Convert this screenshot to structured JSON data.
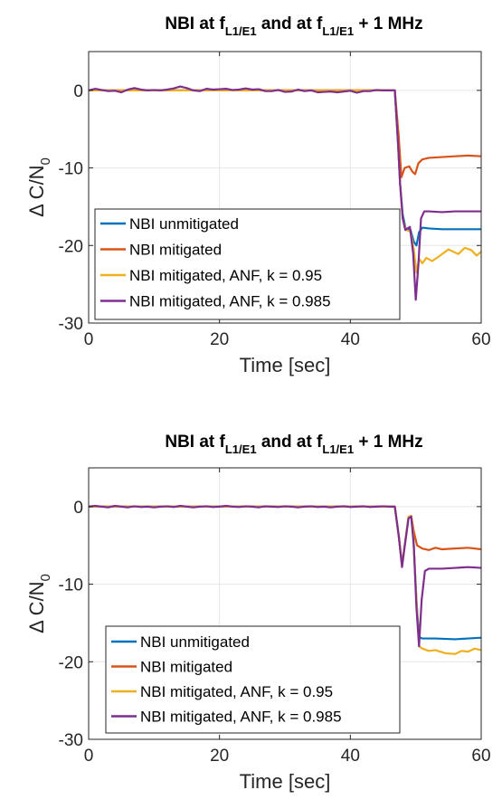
{
  "chart_data": [
    {
      "type": "line",
      "title": {
        "pre": "NBI at f",
        "sub1": "L1/E1",
        "mid": " and at f",
        "sub2": "L1/E1",
        "post": " + 1 MHz"
      },
      "xlabel": "Time [sec]",
      "ylabel": {
        "main": "Δ C/N",
        "sub": "0"
      },
      "xlim": [
        0,
        60
      ],
      "ylim": [
        -30,
        5
      ],
      "xticks": [
        0,
        20,
        40,
        60
      ],
      "yticks": [
        0,
        -10,
        -20,
        -30
      ],
      "grid": true,
      "legend_position": "bottom-left",
      "series": [
        {
          "name": "NBI unmitigated",
          "color": "#0072BD",
          "points": [
            [
              0,
              0
            ],
            [
              46.8,
              0
            ],
            [
              47.3,
              -7
            ],
            [
              47.6,
              -12
            ],
            [
              48,
              -16
            ],
            [
              48.5,
              -18
            ],
            [
              49.2,
              -18
            ],
            [
              49.7,
              -19.5
            ],
            [
              50.1,
              -20
            ],
            [
              50.5,
              -18.3
            ],
            [
              51,
              -17.7
            ],
            [
              52,
              -17.8
            ],
            [
              54,
              -17.9
            ],
            [
              56,
              -17.9
            ],
            [
              58,
              -17.9
            ],
            [
              60,
              -17.9
            ]
          ]
        },
        {
          "name": "NBI mitigated",
          "color": "#D95319",
          "points": [
            [
              0,
              0
            ],
            [
              46.8,
              0
            ],
            [
              47.4,
              -6
            ],
            [
              47.8,
              -11.2
            ],
            [
              48.3,
              -10
            ],
            [
              49,
              -9.8
            ],
            [
              49.5,
              -10.5
            ],
            [
              49.9,
              -10.8
            ],
            [
              50.4,
              -9.4
            ],
            [
              51,
              -8.9
            ],
            [
              52,
              -8.7
            ],
            [
              54,
              -8.6
            ],
            [
              56,
              -8.5
            ],
            [
              58,
              -8.4
            ],
            [
              60,
              -8.5
            ]
          ]
        },
        {
          "name": "NBI mitigated, ANF, k = 0.95",
          "color": "#EDB120",
          "points": [
            [
              0,
              0
            ],
            [
              46.8,
              0
            ],
            [
              47.3,
              -7
            ],
            [
              47.6,
              -12
            ],
            [
              48,
              -16.5
            ],
            [
              48.5,
              -18
            ],
            [
              49.2,
              -18.2
            ],
            [
              49.7,
              -20.5
            ],
            [
              50.1,
              -23.5
            ],
            [
              50.5,
              -21.7
            ],
            [
              51,
              -22.3
            ],
            [
              51.6,
              -21.6
            ],
            [
              52.5,
              -22
            ],
            [
              53.4,
              -21.5
            ],
            [
              55,
              -20.5
            ],
            [
              56.5,
              -21.1
            ],
            [
              57.5,
              -20.3
            ],
            [
              58.5,
              -20.6
            ],
            [
              59.3,
              -21.3
            ],
            [
              60,
              -20.8
            ]
          ]
        },
        {
          "name": "NBI mitigated, ANF, k = 0.985",
          "color": "#7E2F8E",
          "points": [
            [
              0,
              0
            ],
            [
              1,
              0.2
            ],
            [
              2,
              0.05
            ],
            [
              3,
              -0.1
            ],
            [
              4,
              -0.05
            ],
            [
              5,
              -0.25
            ],
            [
              6,
              0.1
            ],
            [
              7,
              0.3
            ],
            [
              8,
              0.1
            ],
            [
              9,
              0
            ],
            [
              10,
              0.05
            ],
            [
              11,
              0
            ],
            [
              12,
              0.1
            ],
            [
              13,
              0.25
            ],
            [
              14,
              0.5
            ],
            [
              15,
              0.3
            ],
            [
              16,
              0
            ],
            [
              17,
              -0.1
            ],
            [
              18,
              0.2
            ],
            [
              19,
              0.1
            ],
            [
              20,
              0.15
            ],
            [
              21,
              0.2
            ],
            [
              22,
              0.05
            ],
            [
              23,
              0.1
            ],
            [
              24,
              0.25
            ],
            [
              25,
              0.1
            ],
            [
              26,
              0.15
            ],
            [
              27,
              -0.1
            ],
            [
              28,
              -0.1
            ],
            [
              29,
              0.05
            ],
            [
              30,
              -0.2
            ],
            [
              31,
              -0.15
            ],
            [
              32,
              0.1
            ],
            [
              33,
              -0.1
            ],
            [
              34,
              0
            ],
            [
              35,
              -0.25
            ],
            [
              36,
              -0.2
            ],
            [
              37,
              -0.15
            ],
            [
              38,
              -0.25
            ],
            [
              39,
              -0.15
            ],
            [
              40,
              -0.05
            ],
            [
              41,
              -0.3
            ],
            [
              42,
              -0.1
            ],
            [
              43,
              -0.1
            ],
            [
              44,
              0.05
            ],
            [
              45,
              0
            ],
            [
              46,
              0
            ],
            [
              46.8,
              0
            ],
            [
              47.3,
              -7
            ],
            [
              47.6,
              -12
            ],
            [
              48,
              -16.5
            ],
            [
              48.4,
              -18
            ],
            [
              49.1,
              -17.6
            ],
            [
              49.6,
              -21
            ],
            [
              50,
              -27
            ],
            [
              50.4,
              -22.5
            ],
            [
              50.8,
              -16.5
            ],
            [
              51.3,
              -15.6
            ],
            [
              52,
              -15.6
            ],
            [
              54,
              -15.7
            ],
            [
              56,
              -15.6
            ],
            [
              58,
              -15.6
            ],
            [
              60,
              -15.6
            ]
          ]
        }
      ]
    },
    {
      "type": "line",
      "title": {
        "pre": "NBI at f",
        "sub1": "L1/E1",
        "mid": " and at f",
        "sub2": "L1/E1",
        "post": " + 1 MHz"
      },
      "xlabel": "Time [sec]",
      "ylabel": {
        "main": "Δ C/N",
        "sub": "0"
      },
      "xlim": [
        0,
        60
      ],
      "ylim": [
        -30,
        5
      ],
      "xticks": [
        0,
        20,
        40,
        60
      ],
      "yticks": [
        0,
        -10,
        -20,
        -30
      ],
      "grid": true,
      "legend_position": "bottom-left",
      "series": [
        {
          "name": "NBI unmitigated",
          "color": "#0072BD",
          "points": [
            [
              0,
              0
            ],
            [
              46.8,
              0
            ],
            [
              47.4,
              -3.8
            ],
            [
              47.9,
              -7.5
            ],
            [
              48.4,
              -4.5
            ],
            [
              48.9,
              -1.3
            ],
            [
              49.3,
              -1.2
            ],
            [
              49.6,
              -3.5
            ],
            [
              50.1,
              -12
            ],
            [
              50.5,
              -16.8
            ],
            [
              51,
              -17
            ],
            [
              53,
              -17
            ],
            [
              56,
              -17.1
            ],
            [
              58,
              -17
            ],
            [
              60,
              -16.9
            ]
          ]
        },
        {
          "name": "NBI mitigated",
          "color": "#D95319",
          "points": [
            [
              0,
              0
            ],
            [
              46.8,
              0
            ],
            [
              47.4,
              -3.8
            ],
            [
              47.9,
              -7.5
            ],
            [
              48.4,
              -4.5
            ],
            [
              48.9,
              -1.3
            ],
            [
              49.3,
              -1.2
            ],
            [
              49.7,
              -3.2
            ],
            [
              50.2,
              -5
            ],
            [
              51,
              -5.4
            ],
            [
              52,
              -5.6
            ],
            [
              53,
              -5.3
            ],
            [
              54,
              -5.5
            ],
            [
              56,
              -5.4
            ],
            [
              58,
              -5.3
            ],
            [
              60,
              -5.5
            ]
          ]
        },
        {
          "name": "NBI mitigated, ANF, k = 0.95",
          "color": "#EDB120",
          "points": [
            [
              0,
              0
            ],
            [
              46.8,
              0
            ],
            [
              47.4,
              -3.8
            ],
            [
              47.9,
              -7.5
            ],
            [
              48.4,
              -4.5
            ],
            [
              48.9,
              -1.3
            ],
            [
              49.3,
              -1.2
            ],
            [
              49.6,
              -3.5
            ],
            [
              50.1,
              -12
            ],
            [
              50.5,
              -18
            ],
            [
              51,
              -18.3
            ],
            [
              52,
              -18.6
            ],
            [
              53,
              -18.5
            ],
            [
              54.5,
              -18.9
            ],
            [
              56,
              -19
            ],
            [
              57,
              -18.6
            ],
            [
              58,
              -18.7
            ],
            [
              59,
              -18.3
            ],
            [
              60,
              -18.5
            ]
          ]
        },
        {
          "name": "NBI mitigated, ANF, k = 0.985",
          "color": "#7E2F8E",
          "points": [
            [
              0,
              0
            ],
            [
              1,
              0.1
            ],
            [
              2,
              0
            ],
            [
              3,
              -0.1
            ],
            [
              4,
              0.1
            ],
            [
              5,
              0
            ],
            [
              6,
              -0.1
            ],
            [
              7,
              0.05
            ],
            [
              8,
              -0.05
            ],
            [
              9,
              0
            ],
            [
              10,
              -0.1
            ],
            [
              11,
              0
            ],
            [
              12,
              0.05
            ],
            [
              13,
              -0.05
            ],
            [
              14,
              0.1
            ],
            [
              15,
              0
            ],
            [
              16,
              -0.1
            ],
            [
              17,
              0
            ],
            [
              18,
              0.05
            ],
            [
              19,
              -0.05
            ],
            [
              20,
              0
            ],
            [
              21,
              0.1
            ],
            [
              22,
              0
            ],
            [
              23,
              -0.05
            ],
            [
              24,
              0.05
            ],
            [
              25,
              0
            ],
            [
              26,
              -0.1
            ],
            [
              27,
              0.05
            ],
            [
              28,
              0
            ],
            [
              29,
              -0.05
            ],
            [
              30,
              0.05
            ],
            [
              31,
              0
            ],
            [
              32,
              -0.1
            ],
            [
              33,
              0
            ],
            [
              34,
              0.05
            ],
            [
              35,
              -0.05
            ],
            [
              36,
              0
            ],
            [
              37,
              -0.1
            ],
            [
              38,
              0
            ],
            [
              39,
              0.05
            ],
            [
              40,
              -0.05
            ],
            [
              41,
              0
            ],
            [
              42,
              0.05
            ],
            [
              43,
              -0.05
            ],
            [
              44,
              0
            ],
            [
              45,
              0.05
            ],
            [
              46,
              0
            ],
            [
              46.8,
              0
            ],
            [
              47.4,
              -3.8
            ],
            [
              47.9,
              -7.8
            ],
            [
              48.4,
              -4.5
            ],
            [
              48.9,
              -1.5
            ],
            [
              49.3,
              -1.3
            ],
            [
              49.7,
              -5
            ],
            [
              50.1,
              -13
            ],
            [
              50.5,
              -18
            ],
            [
              50.9,
              -12
            ],
            [
              51.4,
              -8.3
            ],
            [
              52,
              -8
            ],
            [
              54,
              -8
            ],
            [
              56,
              -7.9
            ],
            [
              58,
              -7.8
            ],
            [
              60,
              -7.9
            ]
          ]
        }
      ]
    }
  ]
}
